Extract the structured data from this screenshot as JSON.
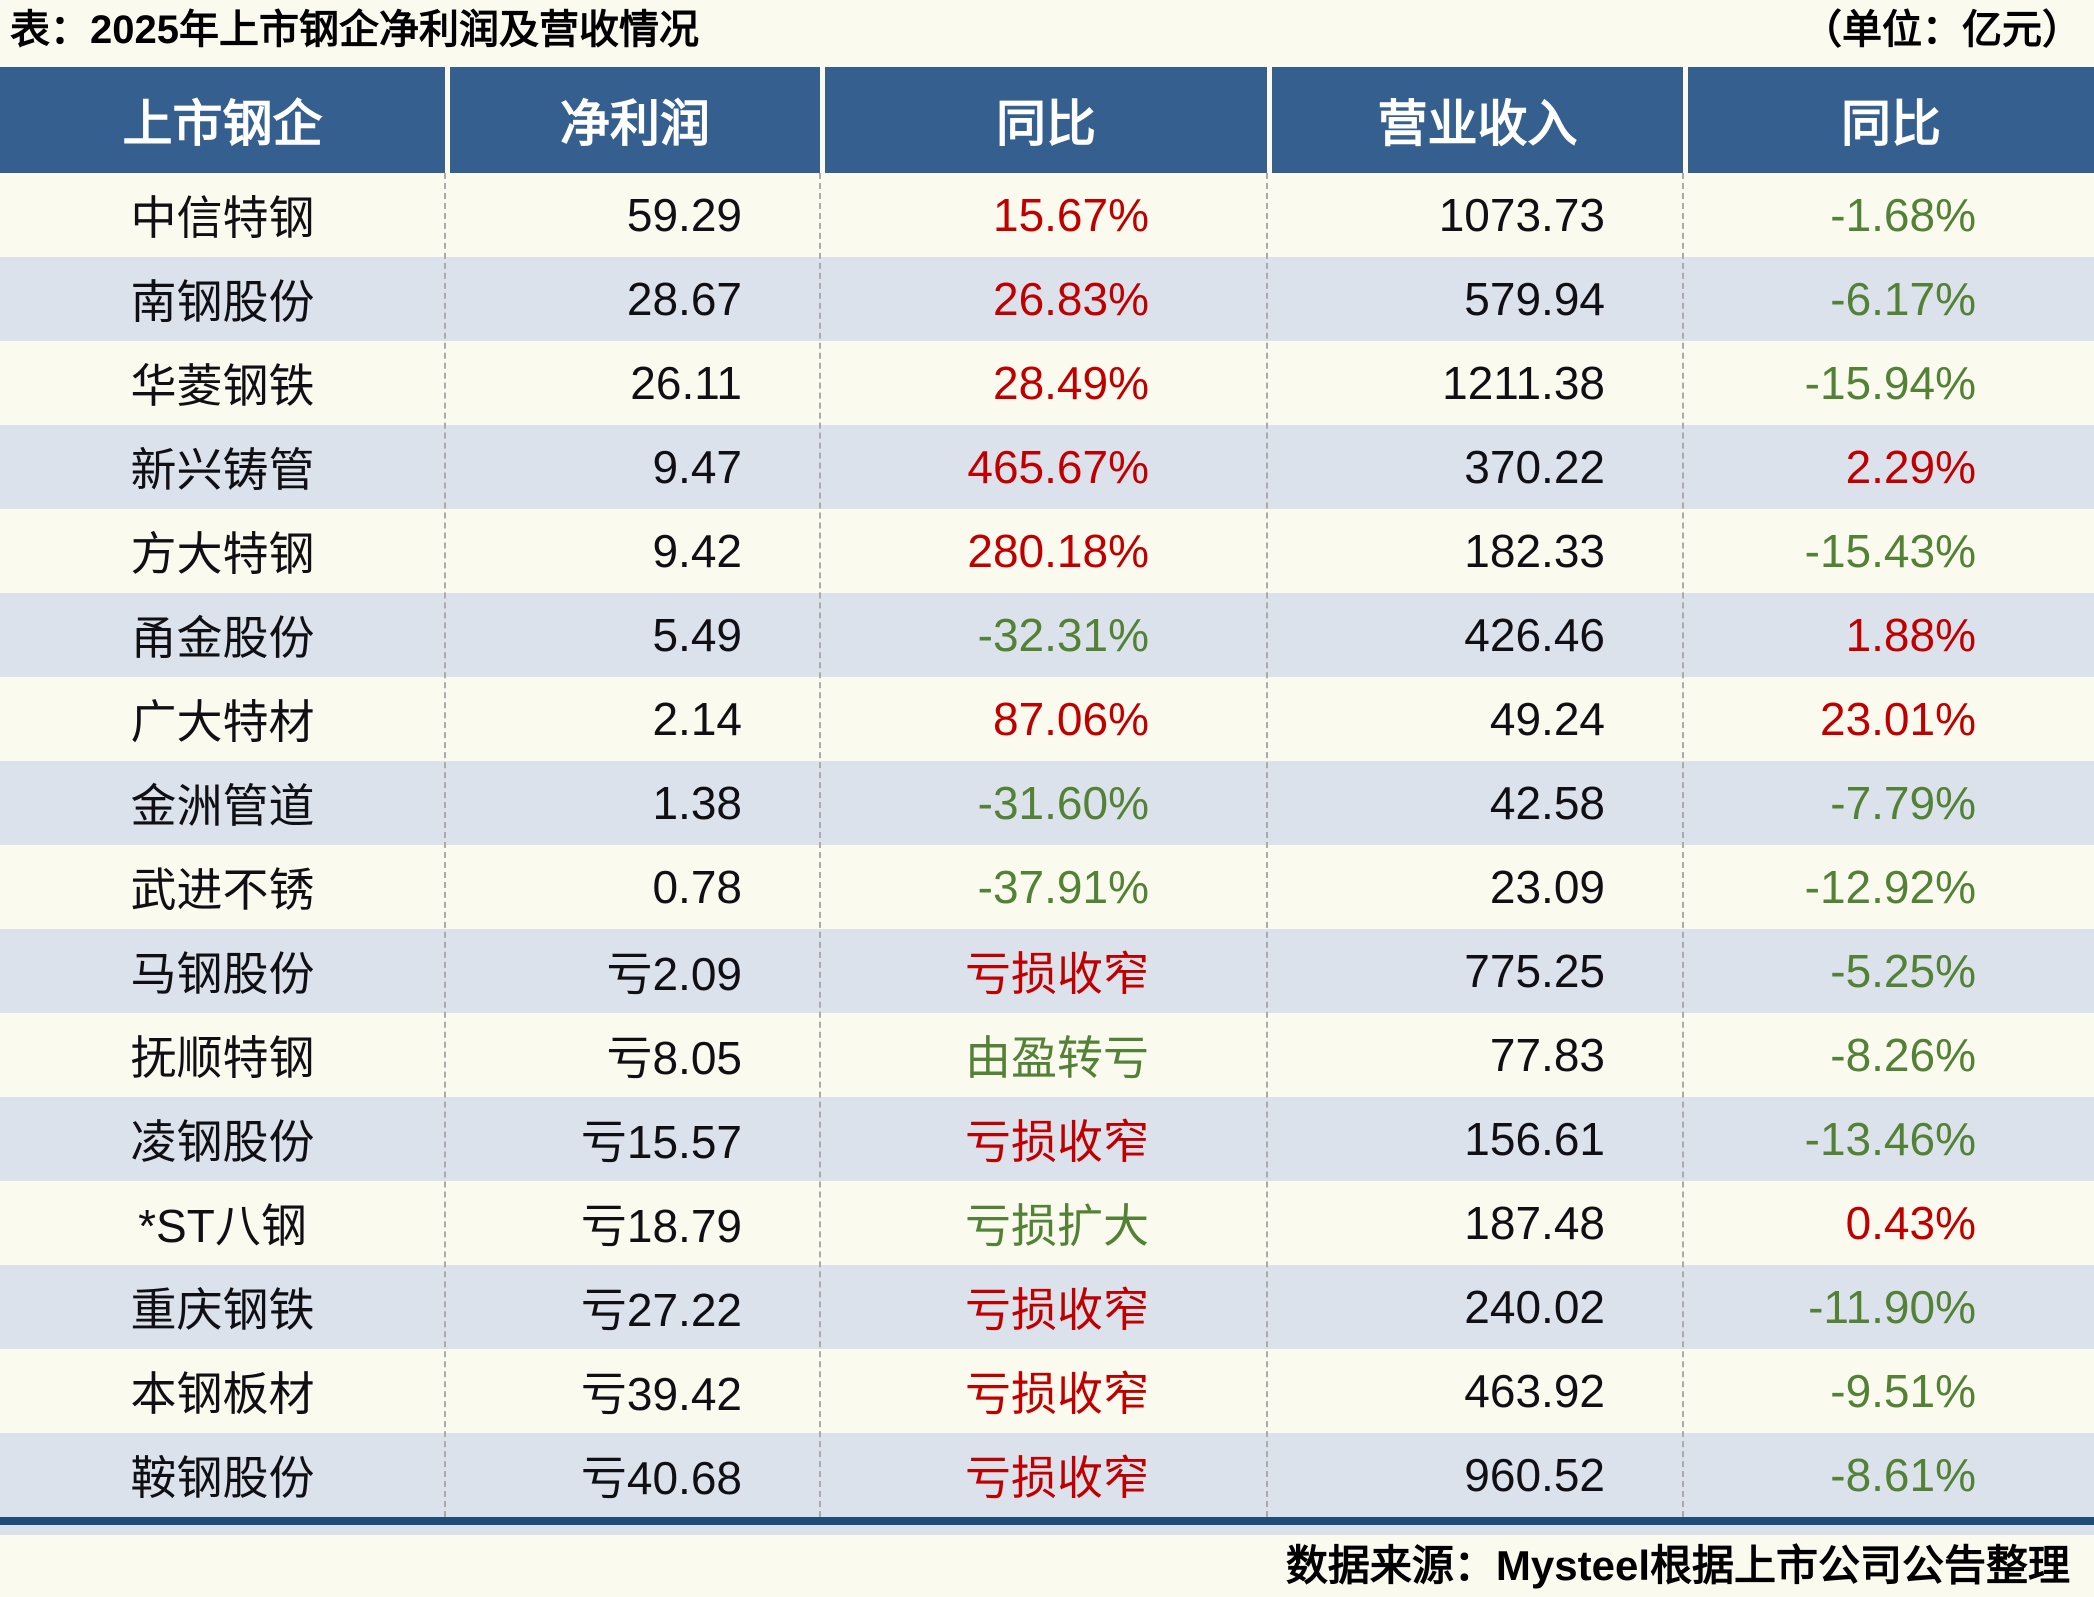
{
  "colors": {
    "cream": "#FBFAEF",
    "header_bg": "#345F8F",
    "stripe": "#DBE2EC",
    "navy": "#1F4E79",
    "red": "#C00000",
    "green": "#538135",
    "ink": "#101014",
    "dash": "#ABABAB"
  },
  "chart_data": {
    "type": "table",
    "title": "表：2025年上市钢企净利润及营收情况",
    "unit": "（单位：亿元）",
    "source": "数据来源：Mysteel根据上市公司公告整理",
    "columns": [
      "上市钢企",
      "净利润",
      "同比",
      "营业收入",
      "同比"
    ],
    "rows": [
      {
        "company": "中信特钢",
        "net_profit": "59.29",
        "net_profit_yoy": "15.67%",
        "net_profit_yoy_color": "red",
        "revenue": "1073.73",
        "revenue_yoy": "-1.68%",
        "revenue_yoy_color": "green"
      },
      {
        "company": "南钢股份",
        "net_profit": "28.67",
        "net_profit_yoy": "26.83%",
        "net_profit_yoy_color": "red",
        "revenue": "579.94",
        "revenue_yoy": "-6.17%",
        "revenue_yoy_color": "green"
      },
      {
        "company": "华菱钢铁",
        "net_profit": "26.11",
        "net_profit_yoy": "28.49%",
        "net_profit_yoy_color": "red",
        "revenue": "1211.38",
        "revenue_yoy": "-15.94%",
        "revenue_yoy_color": "green"
      },
      {
        "company": "新兴铸管",
        "net_profit": "9.47",
        "net_profit_yoy": "465.67%",
        "net_profit_yoy_color": "red",
        "revenue": "370.22",
        "revenue_yoy": "2.29%",
        "revenue_yoy_color": "red"
      },
      {
        "company": "方大特钢",
        "net_profit": "9.42",
        "net_profit_yoy": "280.18%",
        "net_profit_yoy_color": "red",
        "revenue": "182.33",
        "revenue_yoy": "-15.43%",
        "revenue_yoy_color": "green"
      },
      {
        "company": "甬金股份",
        "net_profit": "5.49",
        "net_profit_yoy": "-32.31%",
        "net_profit_yoy_color": "green",
        "revenue": "426.46",
        "revenue_yoy": "1.88%",
        "revenue_yoy_color": "red"
      },
      {
        "company": "广大特材",
        "net_profit": "2.14",
        "net_profit_yoy": "87.06%",
        "net_profit_yoy_color": "red",
        "revenue": "49.24",
        "revenue_yoy": "23.01%",
        "revenue_yoy_color": "red"
      },
      {
        "company": "金洲管道",
        "net_profit": "1.38",
        "net_profit_yoy": "-31.60%",
        "net_profit_yoy_color": "green",
        "revenue": "42.58",
        "revenue_yoy": "-7.79%",
        "revenue_yoy_color": "green"
      },
      {
        "company": "武进不锈",
        "net_profit": "0.78",
        "net_profit_yoy": "-37.91%",
        "net_profit_yoy_color": "green",
        "revenue": "23.09",
        "revenue_yoy": "-12.92%",
        "revenue_yoy_color": "green"
      },
      {
        "company": "马钢股份",
        "net_profit": "亏2.09",
        "net_profit_yoy": "亏损收窄",
        "net_profit_yoy_color": "red",
        "revenue": "775.25",
        "revenue_yoy": "-5.25%",
        "revenue_yoy_color": "green"
      },
      {
        "company": "抚顺特钢",
        "net_profit": "亏8.05",
        "net_profit_yoy": "由盈转亏",
        "net_profit_yoy_color": "green",
        "revenue": "77.83",
        "revenue_yoy": "-8.26%",
        "revenue_yoy_color": "green"
      },
      {
        "company": "凌钢股份",
        "net_profit": "亏15.57",
        "net_profit_yoy": "亏损收窄",
        "net_profit_yoy_color": "red",
        "revenue": "156.61",
        "revenue_yoy": "-13.46%",
        "revenue_yoy_color": "green"
      },
      {
        "company": "*ST八钢",
        "net_profit": "亏18.79",
        "net_profit_yoy": "亏损扩大",
        "net_profit_yoy_color": "green",
        "revenue": "187.48",
        "revenue_yoy": "0.43%",
        "revenue_yoy_color": "red"
      },
      {
        "company": "重庆钢铁",
        "net_profit": "亏27.22",
        "net_profit_yoy": "亏损收窄",
        "net_profit_yoy_color": "red",
        "revenue": "240.02",
        "revenue_yoy": "-11.90%",
        "revenue_yoy_color": "green"
      },
      {
        "company": "本钢板材",
        "net_profit": "亏39.42",
        "net_profit_yoy": "亏损收窄",
        "net_profit_yoy_color": "red",
        "revenue": "463.92",
        "revenue_yoy": "-9.51%",
        "revenue_yoy_color": "green"
      },
      {
        "company": "鞍钢股份",
        "net_profit": "亏40.68",
        "net_profit_yoy": "亏损收窄",
        "net_profit_yoy_color": "red",
        "revenue": "960.52",
        "revenue_yoy": "-8.61%",
        "revenue_yoy_color": "green"
      }
    ]
  }
}
